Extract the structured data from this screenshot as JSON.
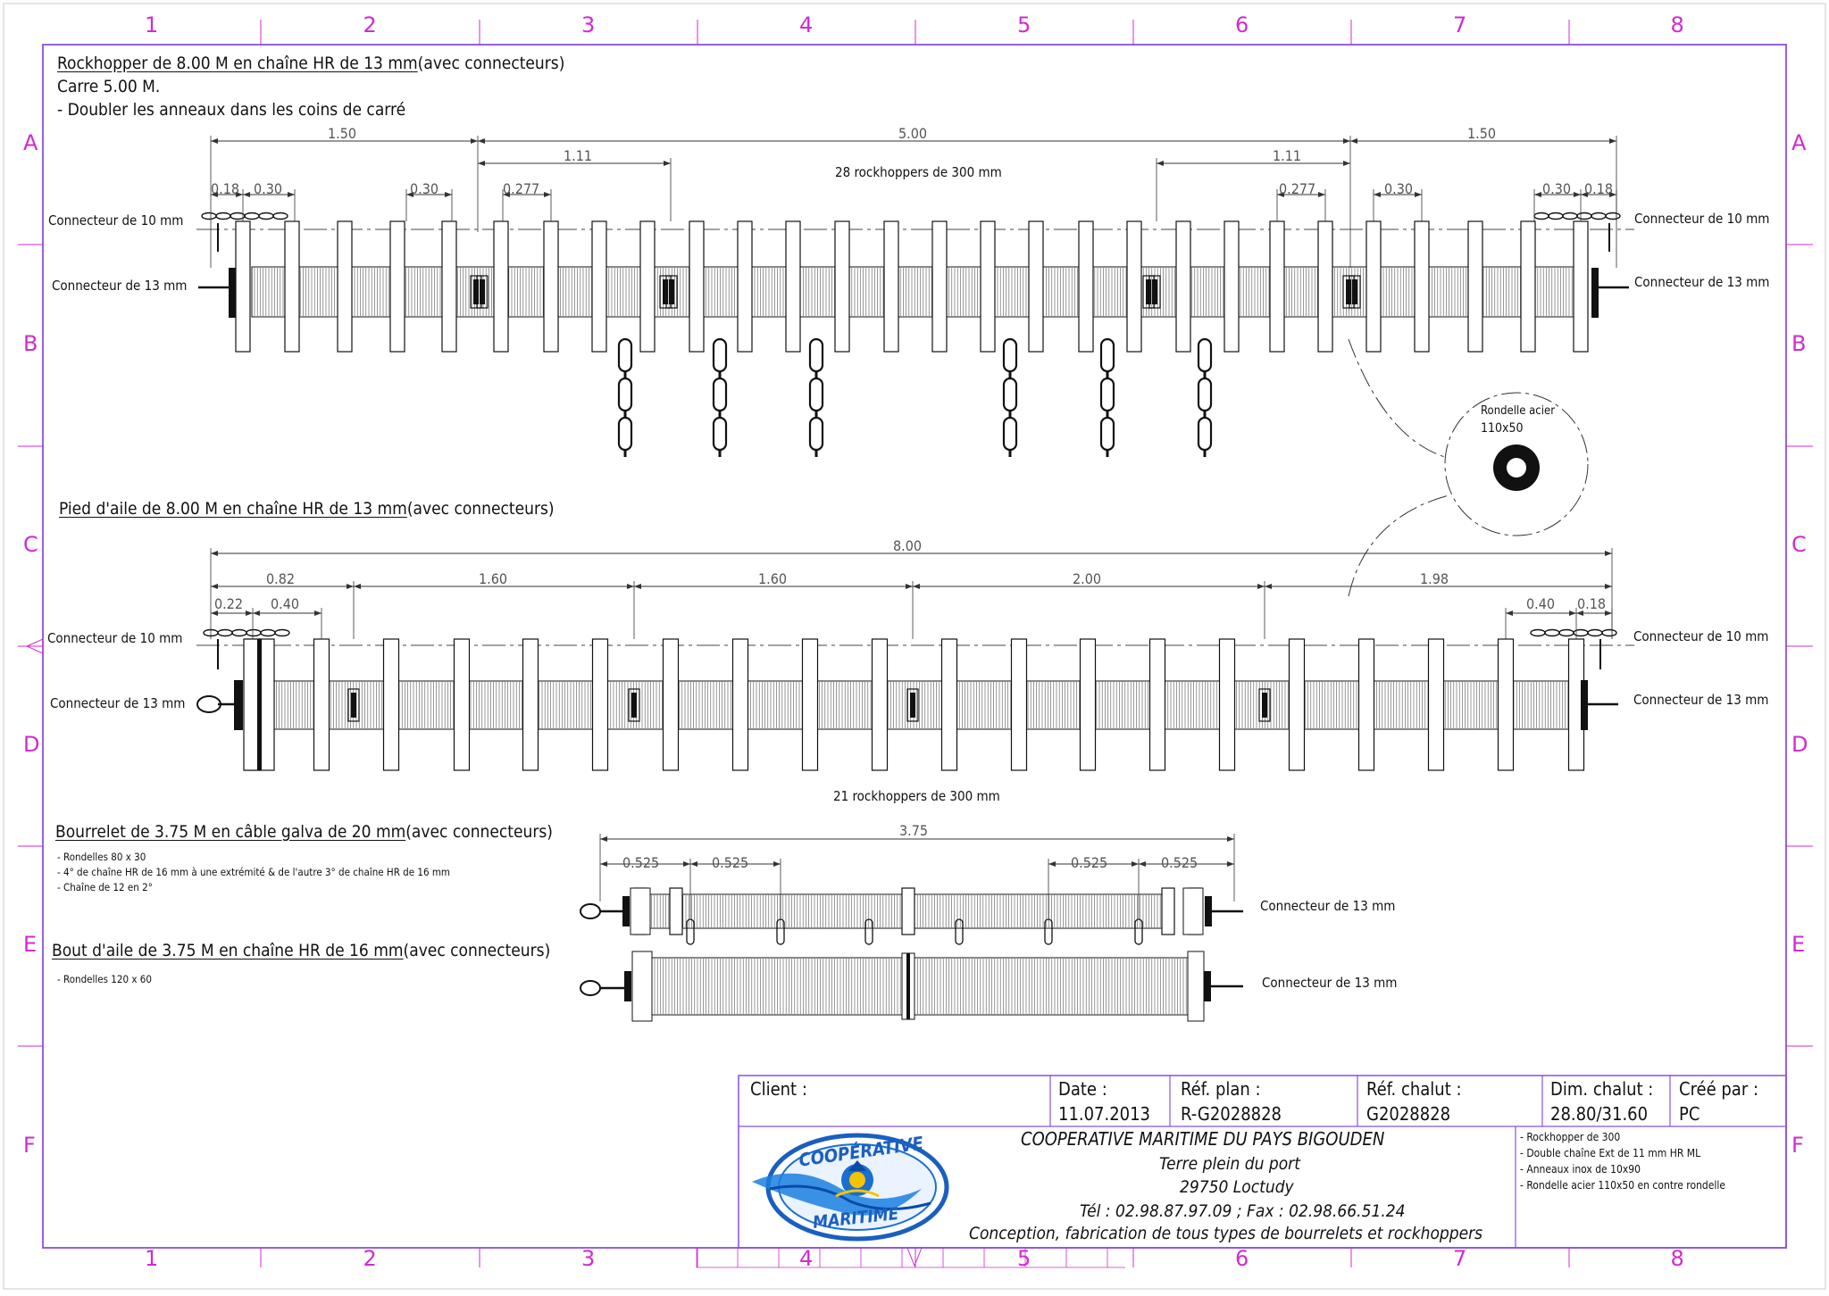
{
  "grid": {
    "columns": [
      "1",
      "2",
      "3",
      "4",
      "5",
      "6",
      "7",
      "8"
    ],
    "rows": [
      "A",
      "B",
      "C",
      "D",
      "E",
      "F"
    ]
  },
  "colors": {
    "frame": "#8a4fe0",
    "grid": "#d02bd0",
    "ink": "#111111",
    "logo_blue": "#1a6fd0"
  },
  "section1": {
    "title": "Rockhopper de 8.00 M en chaîne HR de 13 mm",
    "suffix": " (avec connecteurs)",
    "lines": [
      "Carre 5.00 M.",
      "- Doubler les anneaux dans les coins de carré"
    ],
    "connector_10": "Connecteur de 10 mm",
    "connector_13": "Connecteur de 13 mm",
    "rockhoppers": "28 rockhoppers de 300 mm",
    "dims": [
      "1.50",
      "5.00",
      "1.50",
      "1.11",
      "1.11",
      "0.18",
      "0.30",
      "0.30",
      "0.277",
      "0.277",
      "0.30",
      "0.30",
      "0.18"
    ]
  },
  "washer": {
    "label": "Rondelle acier",
    "size": "110x50"
  },
  "section2": {
    "title": "Pied d'aile de 8.00 M en chaîne HR de 13 mm",
    "suffix": " (avec connecteurs)",
    "connector_10": "Connecteur de 10 mm",
    "connector_13": "Connecteur de 13 mm",
    "rockhoppers": "21 rockhoppers de 300 mm",
    "dims": [
      "8.00",
      "0.82",
      "1.60",
      "1.60",
      "2.00",
      "1.98",
      "0.22",
      "0.40",
      "0.40",
      "0.18"
    ]
  },
  "section3": {
    "title": "Bourrelet de 3.75 M en câble galva de 20 mm",
    "suffix": " (avec connecteurs)",
    "notes": [
      "- Rondelles 80 x 30",
      "- 4° de chaîne HR de 16 mm à une extrémité & de l'autre 3° de chaîne HR de 16 mm",
      "- Chaîne de 12 en 2°"
    ],
    "connector_13": "Connecteur de 13 mm",
    "dims": [
      "3.75",
      "0.525",
      "0.525",
      "0.525",
      "0.525"
    ]
  },
  "section4": {
    "title": "Bout d'aile de 3.75 M en chaîne HR de 16 mm",
    "suffix": " (avec connecteurs)",
    "notes": [
      "- Rondelles 120 x 60"
    ],
    "connector_13": "Connecteur de 13 mm"
  },
  "titleblock": {
    "client_label": "Client :",
    "date_label": "Date :",
    "date_value": "11.07.2013",
    "ref_plan_label": "Réf. plan :",
    "ref_plan_value": "R-G2028828",
    "ref_chalut_label": "Réf. chalut :",
    "ref_chalut_value": "G2028828",
    "dim_label": "Dim. chalut :",
    "dim_value": "28.80/31.60",
    "cree_label": "Créé par :",
    "cree_value": "PC",
    "company": "COOPERATIVE MARITIME DU PAYS BIGOUDEN",
    "address1": "Terre plein du port",
    "address2": "29750 Loctudy",
    "phone": "Tél : 02.98.87.97.09 ; Fax : 02.98.66.51.24",
    "tagline": "Conception, fabrication de tous types de bourrelets et rockhoppers",
    "specs": [
      "- Rockhopper de 300",
      "- Double chaîne Ext de 11 mm HR ML",
      "- Anneaux inox de 10x90",
      "- Rondelle acier 110x50 en contre rondelle"
    ],
    "logo_top": "COOPÉRATIVE",
    "logo_bottom": "MARITIME"
  }
}
